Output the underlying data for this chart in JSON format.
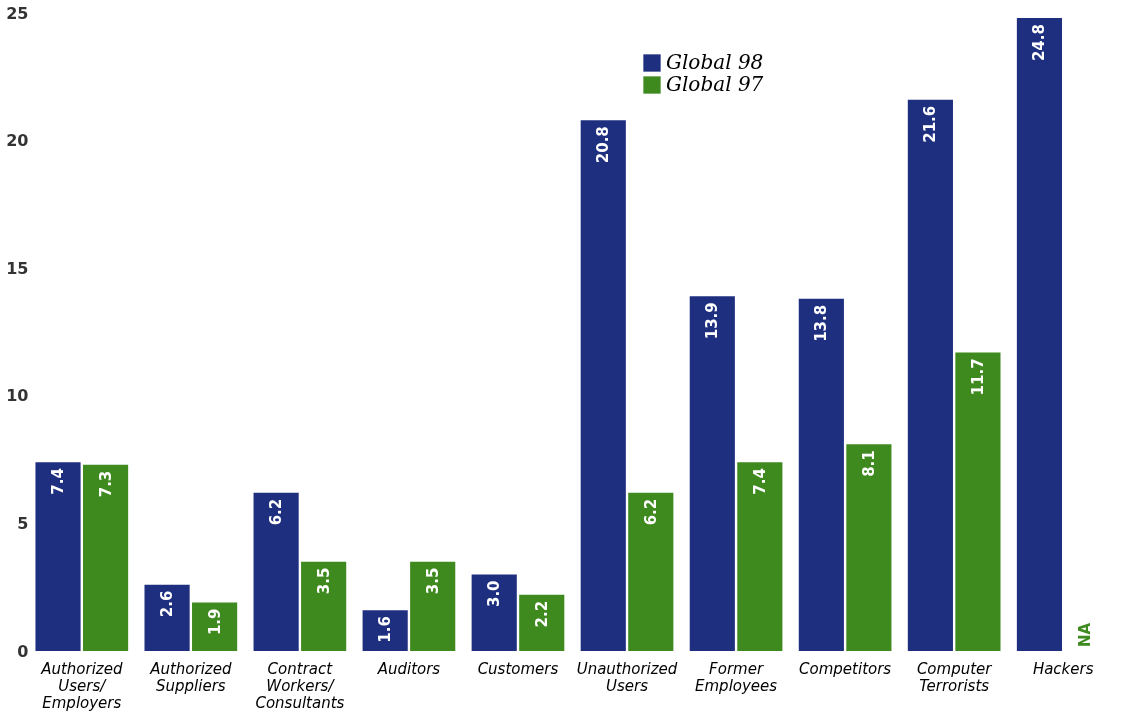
{
  "chart_data": {
    "type": "bar",
    "categories": [
      "Authorized Users/ Employers",
      "Authorized Suppliers",
      "Contract Workers/ Consultants",
      "Auditors",
      "Customers",
      "Unauthorized Users",
      "Former Employees",
      "Competitors",
      "Computer Terrorists",
      "Hackers"
    ],
    "series": [
      {
        "name": "Global 98",
        "color": "#1f2f80",
        "values": [
          7.4,
          2.6,
          6.2,
          1.6,
          3.0,
          20.8,
          13.9,
          13.8,
          21.6,
          24.8
        ],
        "value_labels": [
          "7.4",
          "2.6",
          "6.2",
          "1.6",
          "3.0",
          "20.8",
          "13.9",
          "13.8",
          "21.6",
          "24.8"
        ]
      },
      {
        "name": "Global 97",
        "color": "#3f8a1f",
        "values": [
          7.3,
          1.9,
          3.5,
          3.5,
          2.2,
          6.2,
          7.4,
          8.1,
          11.7,
          null
        ],
        "value_labels": [
          "7.3",
          "1.9",
          "3.5",
          "3.5",
          "2.2",
          "6.2",
          "7.4",
          "8.1",
          "11.7",
          null
        ]
      }
    ],
    "ylim": [
      0,
      25
    ],
    "yticks": [
      0,
      5,
      10,
      15,
      20,
      25
    ],
    "legend": "top right",
    "grid": false,
    "annotations": [
      {
        "text": "NA",
        "x": "Hackers",
        "y": 0
      }
    ]
  }
}
